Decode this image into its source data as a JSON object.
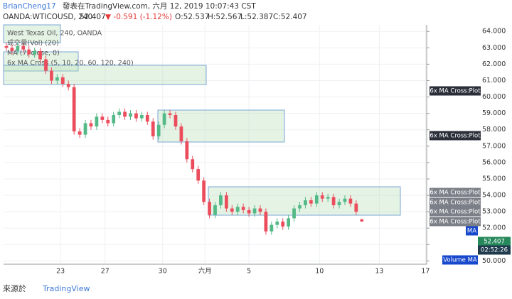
{
  "header": {
    "line1_user": "BrianCheng17",
    "line1_rest": "發表在TradingView.com, 六月 12, 2019 10:07:43 CST",
    "symbol": "OANDA:WTICOUSD, 240",
    "last": "52.407",
    "change": "▼ -0.591 (-1.12%)",
    "ohlc": [
      "O:52.537",
      "H:52.567",
      "L:52.387",
      "C:52.407"
    ]
  },
  "legend": [
    "West Texas Oil, 240, OANDA",
    "成交量(Vol) (20)",
    "MA (7, close, 0)",
    "6x MA Cross (5, 10, 20, 60, 120, 240)"
  ],
  "price_scale_tags": [
    {
      "text": "6x MA Cross:Plot",
      "style": "dark"
    },
    {
      "text": "6x MA Cross:Plot",
      "style": "dark"
    },
    {
      "text": "6x MA Cross:Plot",
      "style": "grey"
    },
    {
      "text": "6x MA Cross:Plot",
      "style": "grey"
    },
    {
      "text": "6x MA Cross:Plot",
      "style": "grey"
    },
    {
      "text": "6x MA Cross:Plot",
      "style": "grey"
    },
    {
      "text": "MA",
      "style": "blue"
    },
    {
      "text": "52.407",
      "style": "dark"
    },
    {
      "text": "02:52:26",
      "style": "dark"
    },
    {
      "text": "Volume MA",
      "style": "blue"
    }
  ],
  "footer": {
    "source": "來源於",
    "brand": "TradingView"
  },
  "chart_data": {
    "type": "candlestick",
    "up_color": "#53b987",
    "down_color": "#eb4d5c",
    "grid": true,
    "xlim": [
      -0.5,
      74.5
    ],
    "ylim": [
      49.8,
      64.4
    ],
    "xticks": [
      {
        "value": 9.6,
        "label": "23"
      },
      {
        "value": 17.5,
        "label": "27"
      },
      {
        "value": 27.7,
        "label": "30"
      },
      {
        "value": 35.2,
        "label": "六月"
      },
      {
        "value": 43.0,
        "label": "5"
      },
      {
        "value": 55.5,
        "label": "10"
      },
      {
        "value": 66.1,
        "label": "13"
      },
      {
        "value": 74.3,
        "label": "17"
      }
    ],
    "yticks": [
      {
        "value": 50,
        "label": "50.000"
      },
      {
        "value": 51,
        "label": "51.000"
      },
      {
        "value": 52,
        "label": "52.000"
      },
      {
        "value": 53,
        "label": "53.000"
      },
      {
        "value": 54,
        "label": "54.000"
      },
      {
        "value": 55,
        "label": "55.000"
      },
      {
        "value": 56,
        "label": "56.000"
      },
      {
        "value": 57,
        "label": "57.000"
      },
      {
        "value": 58,
        "label": "58.000"
      },
      {
        "value": 59,
        "label": "59.000"
      },
      {
        "value": 60,
        "label": "60.000"
      },
      {
        "value": 61,
        "label": "61.000"
      },
      {
        "value": 62,
        "label": "62.000"
      },
      {
        "value": 63,
        "label": "63.000"
      },
      {
        "value": 64,
        "label": "64.000"
      }
    ],
    "open": [
      63.1,
      63.0,
      62.8,
      63.1,
      62.9,
      62.6,
      62.8,
      62.3,
      61.6,
      61.0,
      61.2,
      60.8,
      60.6,
      57.9,
      57.7,
      58.4,
      58.2,
      58.8,
      58.6,
      58.4,
      58.9,
      59.1,
      58.8,
      59.0,
      58.7,
      58.9,
      58.5,
      57.6,
      58.3,
      59.0,
      58.9,
      58.2,
      57.3,
      56.2,
      55.6,
      54.9,
      53.6,
      52.8,
      53.4,
      54.0,
      53.2,
      53.0,
      53.3,
      53.1,
      52.9,
      53.2,
      53.0,
      51.8,
      52.2,
      52.4,
      52.1,
      52.6,
      53.2,
      53.4,
      53.7,
      53.5,
      54.0,
      53.8,
      53.9,
      53.4,
      53.6,
      53.8,
      53.5,
      52.537
    ],
    "high": [
      63.3,
      63.2,
      63.3,
      63.3,
      63.1,
      63.0,
      63.0,
      62.5,
      61.8,
      61.4,
      61.4,
      61.0,
      60.8,
      58.1,
      58.6,
      58.6,
      59.0,
      59.0,
      58.8,
      59.1,
      59.3,
      59.3,
      59.2,
      59.2,
      59.1,
      59.1,
      58.7,
      58.5,
      59.2,
      59.2,
      59.1,
      58.4,
      57.5,
      56.4,
      55.8,
      55.1,
      53.8,
      53.6,
      54.2,
      54.2,
      53.4,
      53.5,
      53.5,
      53.3,
      53.4,
      53.4,
      53.2,
      52.4,
      52.6,
      52.6,
      52.8,
      53.4,
      53.6,
      53.9,
      53.9,
      54.2,
      54.2,
      54.1,
      54.1,
      53.8,
      54.0,
      54.0,
      53.7,
      52.567
    ],
    "low": [
      62.8,
      62.6,
      62.6,
      62.7,
      62.4,
      62.4,
      62.1,
      61.4,
      60.8,
      60.8,
      60.6,
      60.4,
      57.7,
      57.5,
      57.5,
      58.0,
      58.0,
      58.4,
      58.2,
      58.2,
      58.7,
      58.6,
      58.6,
      58.5,
      58.5,
      58.3,
      57.4,
      57.4,
      58.1,
      58.7,
      58.0,
      57.1,
      56.0,
      55.4,
      54.7,
      53.4,
      52.6,
      52.6,
      53.2,
      53.0,
      52.8,
      52.8,
      52.9,
      52.7,
      52.7,
      52.8,
      51.6,
      51.6,
      52.0,
      51.9,
      51.9,
      52.4,
      53.0,
      53.2,
      53.3,
      53.3,
      53.6,
      53.6,
      53.2,
      53.2,
      53.4,
      53.3,
      52.8,
      52.387
    ],
    "close": [
      63.0,
      62.8,
      63.1,
      62.9,
      62.6,
      62.8,
      62.3,
      61.6,
      61.0,
      61.2,
      60.8,
      60.6,
      57.9,
      57.7,
      58.4,
      58.2,
      58.8,
      58.6,
      58.4,
      58.9,
      59.1,
      58.8,
      59.0,
      58.7,
      58.9,
      58.5,
      57.6,
      58.3,
      59.0,
      58.9,
      58.2,
      57.3,
      56.2,
      55.6,
      54.9,
      53.6,
      52.8,
      53.4,
      54.0,
      53.2,
      53.0,
      53.3,
      53.1,
      52.9,
      53.2,
      53.0,
      51.8,
      52.2,
      52.4,
      52.1,
      52.6,
      53.2,
      53.4,
      53.7,
      53.5,
      54.0,
      53.8,
      53.9,
      53.4,
      53.6,
      53.8,
      53.5,
      53.0,
      52.407
    ]
  }
}
